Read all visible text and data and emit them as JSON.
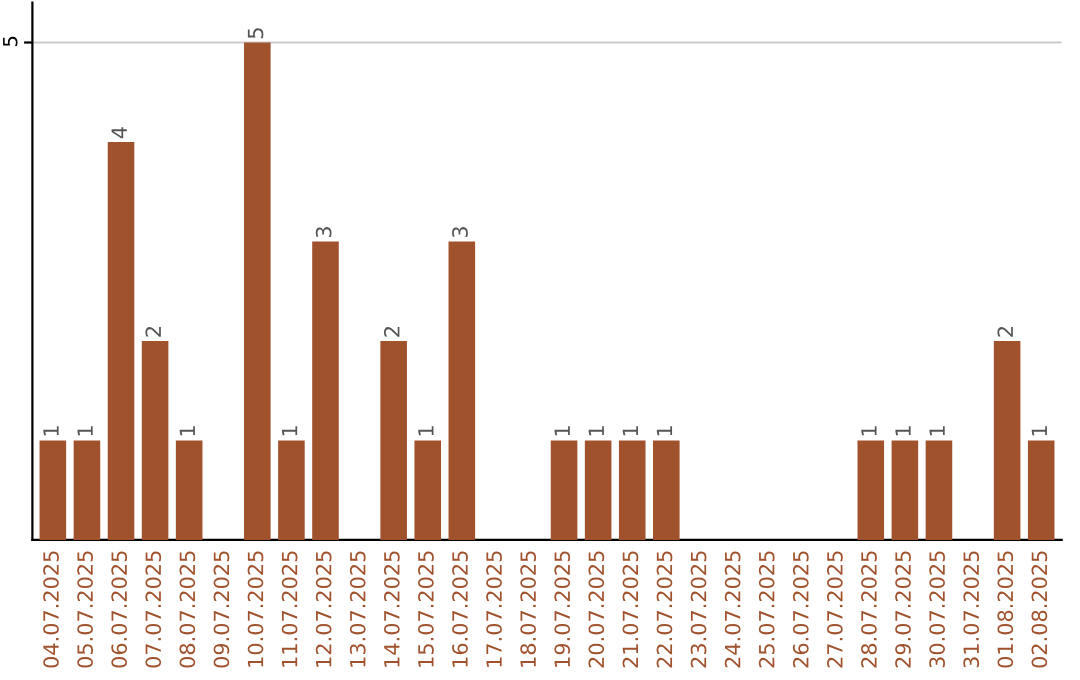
{
  "chart_data": {
    "type": "bar",
    "categories": [
      "04.07.2025",
      "05.07.2025",
      "06.07.2025",
      "07.07.2025",
      "08.07.2025",
      "09.07.2025",
      "10.07.2025",
      "11.07.2025",
      "12.07.2025",
      "13.07.2025",
      "14.07.2025",
      "15.07.2025",
      "16.07.2025",
      "17.07.2025",
      "18.07.2025",
      "19.07.2025",
      "20.07.2025",
      "21.07.2025",
      "22.07.2025",
      "23.07.2025",
      "24.07.2025",
      "25.07.2025",
      "26.07.2025",
      "27.07.2025",
      "28.07.2025",
      "29.07.2025",
      "30.07.2025",
      "31.07.2025",
      "01.08.2025",
      "02.08.2025"
    ],
    "values": [
      1,
      1,
      4,
      2,
      1,
      0,
      5,
      1,
      3,
      0,
      2,
      1,
      3,
      0,
      0,
      1,
      1,
      1,
      1,
      0,
      0,
      0,
      0,
      0,
      1,
      1,
      1,
      0,
      2,
      1
    ],
    "value_labels": [
      "1",
      "1",
      "4",
      "2",
      "1",
      null,
      "5",
      "1",
      "3",
      null,
      "2",
      "1",
      "3",
      null,
      null,
      "1",
      "1",
      "1",
      "1",
      null,
      null,
      null,
      null,
      null,
      "1",
      "1",
      "1",
      null,
      "2",
      "1"
    ],
    "color": "#a0522d",
    "ylim": [
      0,
      5.4
    ],
    "yticks": [
      5
    ],
    "grid": "y",
    "legend": false
  }
}
